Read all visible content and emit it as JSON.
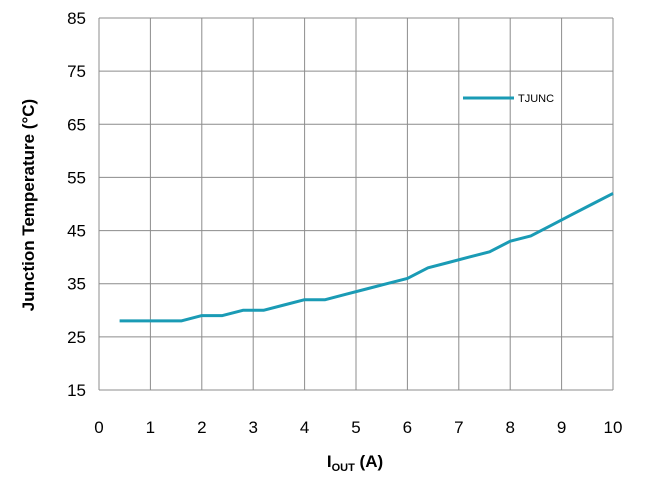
{
  "chart_data": {
    "type": "line",
    "xlabel": "I",
    "xlabel_sub": "OUT",
    "xlabel_unit": " (A)",
    "ylabel": "Junction Temperature (°C)",
    "xlim": [
      0,
      10
    ],
    "ylim": [
      15,
      85
    ],
    "x_ticks": [
      "0",
      "1",
      "2",
      "3",
      "4",
      "5",
      "6",
      "7",
      "8",
      "9",
      "10"
    ],
    "y_ticks": [
      "15",
      "25",
      "35",
      "45",
      "55",
      "65",
      "75",
      "85"
    ],
    "grid": true,
    "legend_position": "top-right",
    "series": [
      {
        "name": "TJUNC",
        "color": "#1a9bb5",
        "x": [
          0.4,
          0.8,
          1.2,
          1.6,
          2.0,
          2.4,
          2.8,
          3.2,
          3.6,
          4.0,
          4.4,
          4.8,
          5.2,
          5.6,
          6.0,
          6.4,
          6.8,
          7.2,
          7.6,
          8.0,
          8.4,
          8.8,
          9.2,
          9.6,
          10.0
        ],
        "y": [
          28,
          28,
          28,
          28,
          29,
          29,
          30,
          30,
          31,
          32,
          32,
          33,
          34,
          35,
          36,
          38,
          39,
          40,
          41,
          43,
          44,
          46,
          48,
          50,
          52
        ]
      }
    ]
  }
}
